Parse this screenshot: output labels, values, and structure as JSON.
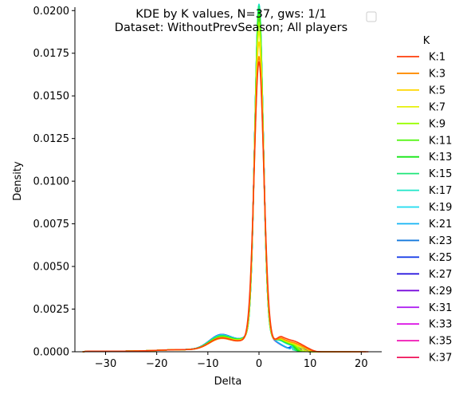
{
  "chart_data": {
    "type": "line",
    "title_lines": [
      "KDE by K values, N=37, gws: 1/1",
      "Dataset: WithoutPrevSeason; All players"
    ],
    "xlabel": "Delta",
    "ylabel": "Density",
    "xlim": [
      -36,
      24
    ],
    "ylim": [
      0,
      0.0202
    ],
    "x_ticks": [
      -30,
      -20,
      -10,
      0,
      10,
      20
    ],
    "y_ticks": [
      0.0,
      0.0025,
      0.005,
      0.0075,
      0.01,
      0.0125,
      0.015,
      0.0175,
      0.02
    ],
    "y_tick_labels": [
      "0.0000",
      "0.0025",
      "0.0050",
      "0.0075",
      "0.0100",
      "0.0125",
      "0.0150",
      "0.0175",
      "0.0200"
    ],
    "grid": false,
    "legend_title": "K",
    "legend_placement": "right",
    "series": [
      {
        "name": "K:1",
        "color": "#ff3d0a",
        "peak": 0.0161,
        "sigma": 0.95,
        "right_tail": 0.00055,
        "right_end": 21.5,
        "left_bump": 0.00072
      },
      {
        "name": "K:3",
        "color": "#ff8c00",
        "peak": 0.0164,
        "sigma": 0.92,
        "right_tail": 0.00045,
        "right_end": 21.0,
        "left_bump": 0.00068
      },
      {
        "name": "K:5",
        "color": "#ffd700",
        "peak": 0.0172,
        "sigma": 0.9,
        "right_tail": 0.00042,
        "right_end": 20.0,
        "left_bump": 0.0007
      },
      {
        "name": "K:7",
        "color": "#e6f00a",
        "peak": 0.0178,
        "sigma": 0.88,
        "right_tail": 0.00038,
        "right_end": 18.0,
        "left_bump": 0.00072
      },
      {
        "name": "K:9",
        "color": "#99ff00",
        "peak": 0.0183,
        "sigma": 0.86,
        "right_tail": 0.00034,
        "right_end": 16.0,
        "left_bump": 0.00075
      },
      {
        "name": "K:11",
        "color": "#4df50a",
        "peak": 0.0187,
        "sigma": 0.85,
        "right_tail": 0.0003,
        "right_end": 15.0,
        "left_bump": 0.00078
      },
      {
        "name": "K:13",
        "color": "#14e614",
        "peak": 0.019,
        "sigma": 0.84,
        "right_tail": 0.00028,
        "right_end": 14.0,
        "left_bump": 0.0008
      },
      {
        "name": "K:15",
        "color": "#1ee678",
        "peak": 0.0192,
        "sigma": 0.83,
        "right_tail": 0.00026,
        "right_end": 13.0,
        "left_bump": 0.00082
      },
      {
        "name": "K:17",
        "color": "#1ee6c8",
        "peak": 0.0193,
        "sigma": 0.83,
        "right_tail": 0.00024,
        "right_end": 12.0,
        "left_bump": 0.00084
      },
      {
        "name": "K:19",
        "color": "#28dcf0",
        "peak": 0.0193,
        "sigma": 0.83,
        "right_tail": 0.00022,
        "right_end": 12.0,
        "left_bump": 0.00086
      },
      {
        "name": "K:21",
        "color": "#14b4f5",
        "peak": 0.0193,
        "sigma": 0.83,
        "right_tail": 0.0002,
        "right_end": 11.0,
        "left_bump": 0.00088
      },
      {
        "name": "K:23",
        "color": "#1478dc",
        "peak": 0.0192,
        "sigma": 0.83,
        "right_tail": 0.00018,
        "right_end": 11.0,
        "left_bump": 0.0009
      },
      {
        "name": "K:25",
        "color": "#0a32e6",
        "peak": 0.0191,
        "sigma": 0.84,
        "right_tail": 0.00016,
        "right_end": 10.0,
        "left_bump": 0.0009
      },
      {
        "name": "K:27",
        "color": "#1e0adc",
        "peak": 0.019,
        "sigma": 0.84,
        "right_tail": 0.00015,
        "right_end": 10.0,
        "left_bump": 0.0009
      },
      {
        "name": "K:29",
        "color": "#780adc",
        "peak": 0.0189,
        "sigma": 0.84,
        "right_tail": 0.00014,
        "right_end": 10.0,
        "left_bump": 0.00088
      },
      {
        "name": "K:31",
        "color": "#aa14f0",
        "peak": 0.0188,
        "sigma": 0.85,
        "right_tail": 0.00014,
        "right_end": 10.0,
        "left_bump": 0.00086
      },
      {
        "name": "K:33",
        "color": "#dc14e6",
        "peak": 0.0187,
        "sigma": 0.85,
        "right_tail": 0.00013,
        "right_end": 10.0,
        "left_bump": 0.00084
      },
      {
        "name": "K:35",
        "color": "#f014b4",
        "peak": 0.0186,
        "sigma": 0.85,
        "right_tail": 0.00013,
        "right_end": 10.0,
        "left_bump": 0.00082
      },
      {
        "name": "K:37",
        "color": "#f0145a",
        "peak": 0.0185,
        "sigma": 0.86,
        "right_tail": 0.00012,
        "right_end": 10.0,
        "left_bump": 0.0008
      }
    ]
  }
}
